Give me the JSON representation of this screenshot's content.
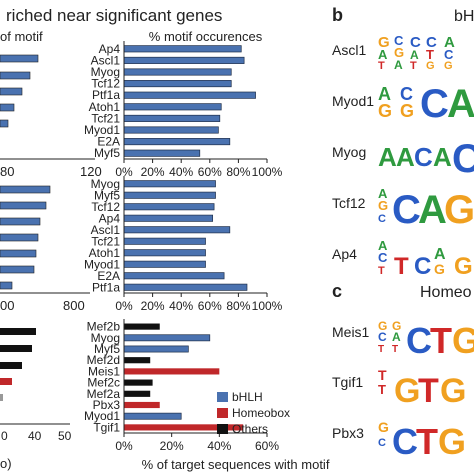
{
  "header": {
    "title": "riched near significant genes"
  },
  "left_partial": {
    "top_label": "of motif",
    "top_ticks": [
      "80",
      "120"
    ],
    "mid_ticks": [
      "00",
      "800"
    ],
    "bot_ticks": [
      "0",
      "30",
      "40",
      "50"
    ],
    "bot_label_fragment": "o)"
  },
  "panel_b": {
    "letter": "b",
    "header_fragment": "bH",
    "logo_labels": [
      "Ascl1",
      "Myod1",
      "Myog",
      "Tcf12",
      "Ap4"
    ]
  },
  "panel_c": {
    "letter": "c",
    "header_fragment": "Homeo",
    "logo_labels": [
      "Meis1",
      "Tgif1",
      "Pbx3"
    ]
  },
  "legend": [
    {
      "label": "bHLH",
      "color": "#4a72b0"
    },
    {
      "label": "Homeobox",
      "color": "#c0282a"
    },
    {
      "label": "Others",
      "color": "#111111"
    }
  ],
  "chart_data": [
    {
      "type": "bar",
      "orientation": "horizontal",
      "title": "% motif occurences",
      "xlim": [
        0,
        100
      ],
      "xticks": [
        "0%",
        "20%",
        "40%",
        "60%",
        "80%",
        "100%"
      ],
      "categories": [
        "Ap4",
        "Ascl1",
        "Myog",
        "Tcf12",
        "Ptf1a",
        "Atoh1",
        "Tcf21",
        "Myod1",
        "E2A",
        "Myf5"
      ],
      "values": [
        82,
        84,
        75,
        75,
        92,
        68,
        67,
        66,
        74,
        53
      ],
      "colors": [
        "#4a72b0",
        "#4a72b0",
        "#4a72b0",
        "#4a72b0",
        "#4a72b0",
        "#4a72b0",
        "#4a72b0",
        "#4a72b0",
        "#4a72b0",
        "#4a72b0"
      ]
    },
    {
      "type": "bar",
      "orientation": "horizontal",
      "title": "",
      "xlim": [
        0,
        100
      ],
      "xticks": [
        "0%",
        "20%",
        "40%",
        "60%",
        "80%",
        "100%"
      ],
      "categories": [
        "Myog",
        "Myf5",
        "Tcf12",
        "Ap4",
        "Ascl1",
        "Tcf21",
        "Atoh1",
        "Myod1",
        "E2A",
        "Ptf1a"
      ],
      "values": [
        64,
        64,
        63,
        62,
        74,
        57,
        57,
        57,
        70,
        86
      ],
      "colors": [
        "#4a72b0",
        "#4a72b0",
        "#4a72b0",
        "#4a72b0",
        "#4a72b0",
        "#4a72b0",
        "#4a72b0",
        "#4a72b0",
        "#4a72b0",
        "#4a72b0"
      ]
    },
    {
      "type": "bar",
      "orientation": "horizontal",
      "title": "",
      "xlabel": "% of target sequences with motif",
      "xlim": [
        0,
        60
      ],
      "xticks": [
        "0%",
        "20%",
        "40%",
        "60%"
      ],
      "categories": [
        "Mef2b",
        "Myog",
        "Myf5",
        "Mef2d",
        "Meis1",
        "Mef2c",
        "Mef2a",
        "Pbx3",
        "Myod1",
        "Tgif1"
      ],
      "values": [
        15,
        36,
        27,
        11,
        40,
        12,
        11,
        15,
        24,
        50
      ],
      "colors": [
        "#111111",
        "#4a72b0",
        "#4a72b0",
        "#111111",
        "#c0282a",
        "#111111",
        "#111111",
        "#c0282a",
        "#4a72b0",
        "#c0282a"
      ]
    }
  ]
}
